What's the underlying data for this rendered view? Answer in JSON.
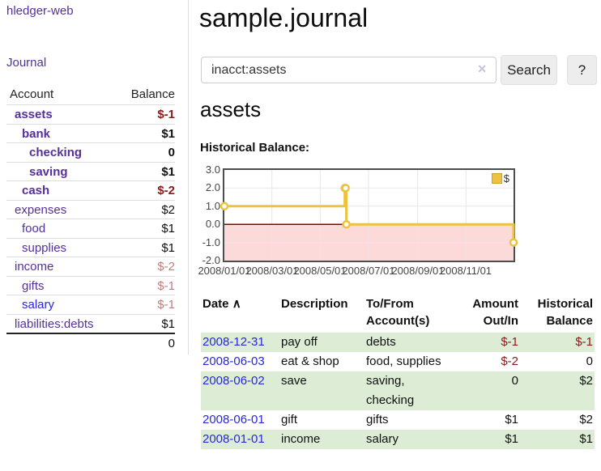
{
  "sidebar": {
    "app_link": "hledger-web",
    "nav_journal": "Journal",
    "table": {
      "header_account": "Account",
      "header_balance": "Balance",
      "rows": [
        {
          "account": "assets",
          "balance": "$-1",
          "depth": 1
        },
        {
          "account": "bank",
          "balance": "$1",
          "depth": 2
        },
        {
          "account": "checking",
          "balance": "0",
          "depth": 3
        },
        {
          "account": "saving",
          "balance": "$1",
          "depth": 3
        },
        {
          "account": "cash",
          "balance": "$-2",
          "depth": 2
        },
        {
          "account": "expenses",
          "balance": "$2",
          "depth": 1
        },
        {
          "account": "food",
          "balance": "$1",
          "depth": 2
        },
        {
          "account": "supplies",
          "balance": "$1",
          "depth": 2
        },
        {
          "account": "income",
          "balance": "$-2",
          "depth": 1
        },
        {
          "account": "gifts",
          "balance": "$-1",
          "depth": 2
        },
        {
          "account": "salary",
          "balance": "$-1",
          "depth": 2
        },
        {
          "account": "liabilities:debts",
          "balance": "$1",
          "depth": 1
        }
      ],
      "total_balance": "0"
    }
  },
  "main": {
    "title": "sample.journal",
    "search": {
      "value": "inacct:assets",
      "clear_glyph": "✕",
      "button_label": "Search",
      "help_label": "?"
    },
    "account_heading": "assets",
    "chart_title": "Historical Balance:"
  },
  "chart_data": {
    "type": "line",
    "step": true,
    "title": "Historical Balance",
    "series": [
      {
        "name": "$",
        "color": "#edc240",
        "points": [
          [
            "2008-01-01",
            1
          ],
          [
            "2008-06-01",
            2
          ],
          [
            "2008-06-02",
            2
          ],
          [
            "2008-06-03",
            0
          ],
          [
            "2008-12-31",
            -1
          ]
        ]
      }
    ],
    "xlim": [
      "2008-01-01",
      "2008-12-31"
    ],
    "ylim": [
      -2,
      3
    ],
    "x_ticks": [
      "2008/01/01",
      "2008/03/01",
      "2008/05/01",
      "2008/07/01",
      "2008/09/01",
      "2008/11/01"
    ],
    "y_tick_labels": [
      "3.0",
      "2.0",
      "1.0",
      "0.0",
      "-1.0",
      "-2.0"
    ],
    "grid": true,
    "legend": {
      "label": "$",
      "position": "top-right"
    },
    "negative_region_color": "#fcdada",
    "zero_line_color": "#8b0000"
  },
  "register": {
    "headers": {
      "date": "Date",
      "description": "Description",
      "accounts": "To/From Account(s)",
      "amount": "Amount Out/In",
      "balance": "Historical Balance"
    },
    "sort_icon": "∧",
    "rows": [
      {
        "date": "2008-12-31",
        "description": "pay off",
        "accounts": "debts",
        "amount": "$-1",
        "balance": "$-1"
      },
      {
        "date": "2008-06-03",
        "description": "eat & shop",
        "accounts": "food, supplies",
        "amount": "$-2",
        "balance": "0"
      },
      {
        "date": "2008-06-02",
        "description": "save",
        "accounts": "saving, checking",
        "amount": "0",
        "balance": "$2"
      },
      {
        "date": "2008-06-01",
        "description": "gift",
        "accounts": "gifts",
        "amount": "$1",
        "balance": "$2"
      },
      {
        "date": "2008-01-01",
        "description": "income",
        "accounts": "salary",
        "amount": "$1",
        "balance": "$1"
      }
    ]
  },
  "colors": {
    "link_purple": "#55309a",
    "link_blue": "#2828d8",
    "negative_dark_red": "#8b1a1a",
    "negative_light_red": "#bd7f7f",
    "row_stripe_green": "#dcecd5",
    "chart_line_yellow": "#edc240",
    "chart_negative_region_pink": "#fcdada",
    "chart_zero_line_red": "#8b0000",
    "button_gray": "#ededed"
  }
}
